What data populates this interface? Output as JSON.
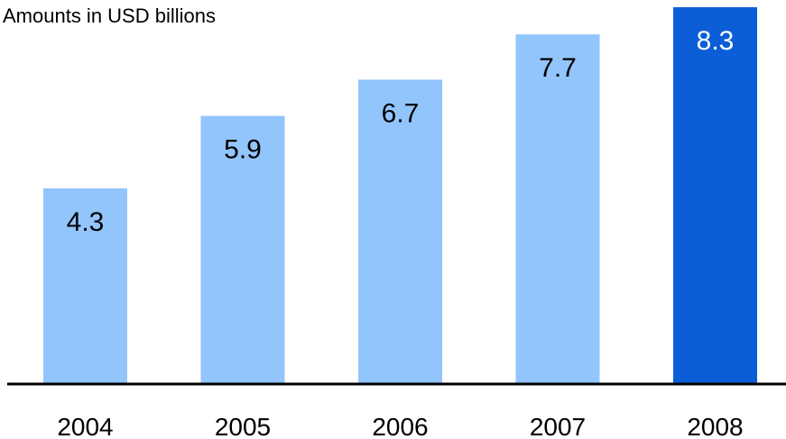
{
  "chart_data": {
    "type": "bar",
    "subtitle": "Amounts in USD billions",
    "categories": [
      "2004",
      "2005",
      "2006",
      "2007",
      "2008"
    ],
    "values": [
      4.3,
      5.9,
      6.7,
      7.7,
      8.3
    ],
    "data_labels": [
      "4.3",
      "5.9",
      "6.7",
      "7.7",
      "8.3"
    ],
    "ylim": [
      0,
      8.3
    ],
    "grid": false,
    "legend": "none",
    "colors": {
      "bar": "#93C5FD",
      "highlight_bar": "#0B5ED7",
      "label_on_light": "#000000",
      "label_on_dark": "#ffffff",
      "axis": "#000000"
    },
    "highlight_category": "2008"
  }
}
